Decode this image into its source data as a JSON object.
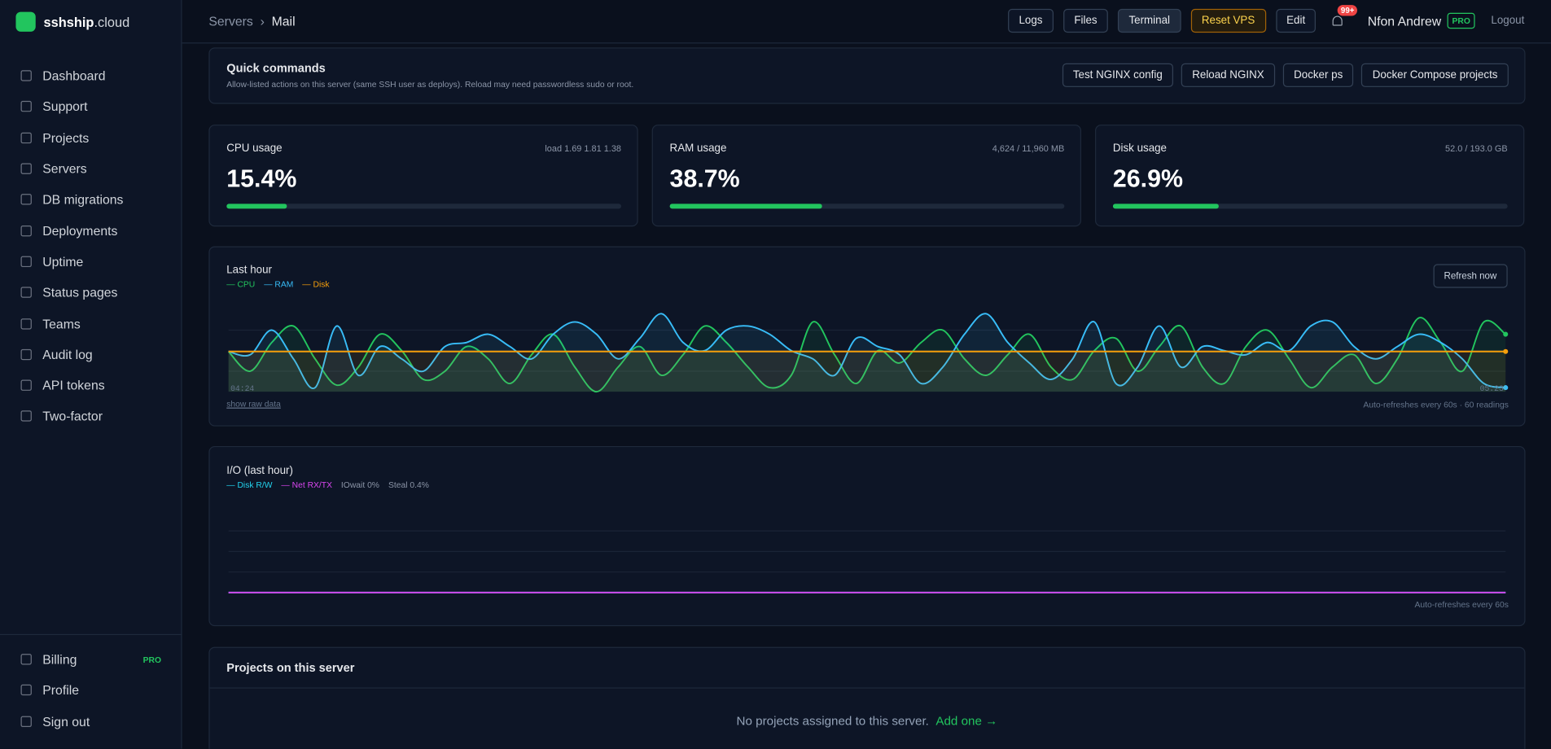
{
  "brand": {
    "name": "sshship",
    "suffix": ".cloud"
  },
  "nav": [
    "Dashboard",
    "Support",
    "Projects",
    "Servers",
    "DB migrations",
    "Deployments",
    "Uptime",
    "Status pages",
    "Teams",
    "Audit log",
    "API tokens",
    "Two-factor"
  ],
  "nav_bottom": {
    "billing": "Billing",
    "billing_badge": "PRO",
    "items": [
      "Profile",
      "Sign out"
    ]
  },
  "breadcrumb": [
    "Servers",
    "Mail"
  ],
  "toolbar": [
    "Logs",
    "Files",
    "Terminal",
    "Reset VPS",
    "Edit"
  ],
  "notifications": "99+",
  "user": {
    "name": "Nfon Andrew",
    "plan": "PRO",
    "logout": "Logout"
  },
  "quick_commands": {
    "title": "Quick commands",
    "description": "Allow-listed actions on this server (same SSH user as deploys). Reload may need passwordless sudo or root.",
    "buttons": [
      "Test NGINX config",
      "Reload NGINX",
      "Docker ps",
      "Docker Compose projects"
    ]
  },
  "stats": [
    {
      "label": "CPU usage",
      "detail": "load 1.69 1.81 1.38",
      "value": 15.4,
      "value_label": "15.4%"
    },
    {
      "label": "RAM usage",
      "detail": "4,624 / 11,960 MB",
      "value": 38.7,
      "value_label": "38.7%"
    },
    {
      "label": "Disk usage",
      "detail": "52.0 / 193.0 GB",
      "value": 26.9,
      "value_label": "26.9%"
    }
  ],
  "chart_data": [
    {
      "type": "line",
      "title": "Last hour",
      "button": "Refresh now",
      "xlabels": [
        "04:24",
        "05:23"
      ],
      "link": "show raw data",
      "note": "Auto-refreshes every 60s · 60 readings",
      "ylim": [
        0,
        100
      ],
      "grid": true,
      "series": [
        {
          "name": "CPU",
          "color": "#22c55e",
          "values": [
            49,
            25,
            60,
            80,
            40,
            8,
            30,
            70,
            50,
            15,
            25,
            55,
            40,
            10,
            45,
            70,
            30,
            0,
            30,
            55,
            20,
            45,
            80,
            60,
            30,
            5,
            20,
            85,
            45,
            10,
            50,
            35,
            60,
            75,
            40,
            20,
            45,
            70,
            30,
            15,
            50,
            65,
            25,
            55,
            80,
            30,
            10,
            55,
            75,
            40,
            5,
            30,
            45,
            10,
            40,
            90,
            60,
            25,
            85,
            70
          ]
        },
        {
          "name": "RAM",
          "color": "#38bdf8",
          "values": [
            49,
            45,
            75,
            40,
            5,
            80,
            20,
            55,
            40,
            25,
            55,
            60,
            70,
            55,
            40,
            70,
            85,
            70,
            40,
            65,
            95,
            60,
            50,
            75,
            80,
            70,
            50,
            40,
            20,
            65,
            55,
            45,
            10,
            30,
            70,
            95,
            60,
            35,
            15,
            40,
            85,
            10,
            30,
            80,
            30,
            55,
            50,
            45,
            60,
            50,
            80,
            85,
            55,
            40,
            55,
            70,
            60,
            40,
            10,
            5
          ]
        },
        {
          "name": "Disk",
          "color": "#f59e0b",
          "values": [
            49,
            49,
            49,
            49,
            49,
            49,
            49,
            49,
            49,
            49,
            49,
            49,
            49,
            49,
            49,
            49,
            49,
            49,
            49,
            49,
            49,
            49,
            49,
            49,
            49,
            49,
            49,
            49,
            49,
            49,
            49,
            49,
            49,
            49,
            49,
            49,
            49,
            49,
            49,
            49,
            49,
            49,
            49,
            49,
            49,
            49,
            49,
            49,
            49,
            49,
            49,
            49,
            49,
            49,
            49,
            49,
            49,
            49,
            49,
            49
          ]
        }
      ]
    },
    {
      "type": "line",
      "title": "I/O (last hour)",
      "legend_notes": [
        "IOwait 0%",
        "Steal 0.4%"
      ],
      "note": "Auto-refreshes every 60s",
      "ylim": [
        0,
        100
      ],
      "grid": true,
      "series": [
        {
          "name": "Disk R/W",
          "color": "#22d3ee",
          "values": [
            0,
            0,
            0,
            0,
            0,
            0,
            0,
            0,
            0,
            0,
            0,
            0,
            0,
            0,
            0,
            0,
            0,
            0,
            0,
            0,
            0,
            0,
            0,
            0,
            0,
            0,
            0,
            0,
            0,
            0,
            0,
            0,
            0,
            0,
            0,
            0,
            0,
            0,
            0,
            0,
            0,
            0,
            0,
            0,
            0,
            0,
            0,
            0,
            0,
            0,
            0,
            0,
            0,
            0,
            0,
            0,
            0,
            0,
            0,
            0
          ]
        },
        {
          "name": "Net RX/TX",
          "color": "#d946ef",
          "values": [
            0,
            0,
            0,
            0,
            0,
            0,
            0,
            0,
            0,
            0,
            0,
            0,
            0,
            0,
            0,
            0,
            0,
            0,
            0,
            0,
            0,
            0,
            0,
            0,
            0,
            0,
            0,
            0,
            0,
            0,
            0,
            0,
            0,
            0,
            0,
            0,
            0,
            0,
            0,
            0,
            0,
            0,
            0,
            0,
            0,
            0,
            0,
            0,
            0,
            0,
            0,
            0,
            0,
            0,
            0,
            0,
            0,
            0,
            0,
            0
          ]
        }
      ]
    }
  ],
  "projects": {
    "title": "Projects on this server",
    "empty": "No projects assigned to this server.",
    "action": "Add one →"
  }
}
